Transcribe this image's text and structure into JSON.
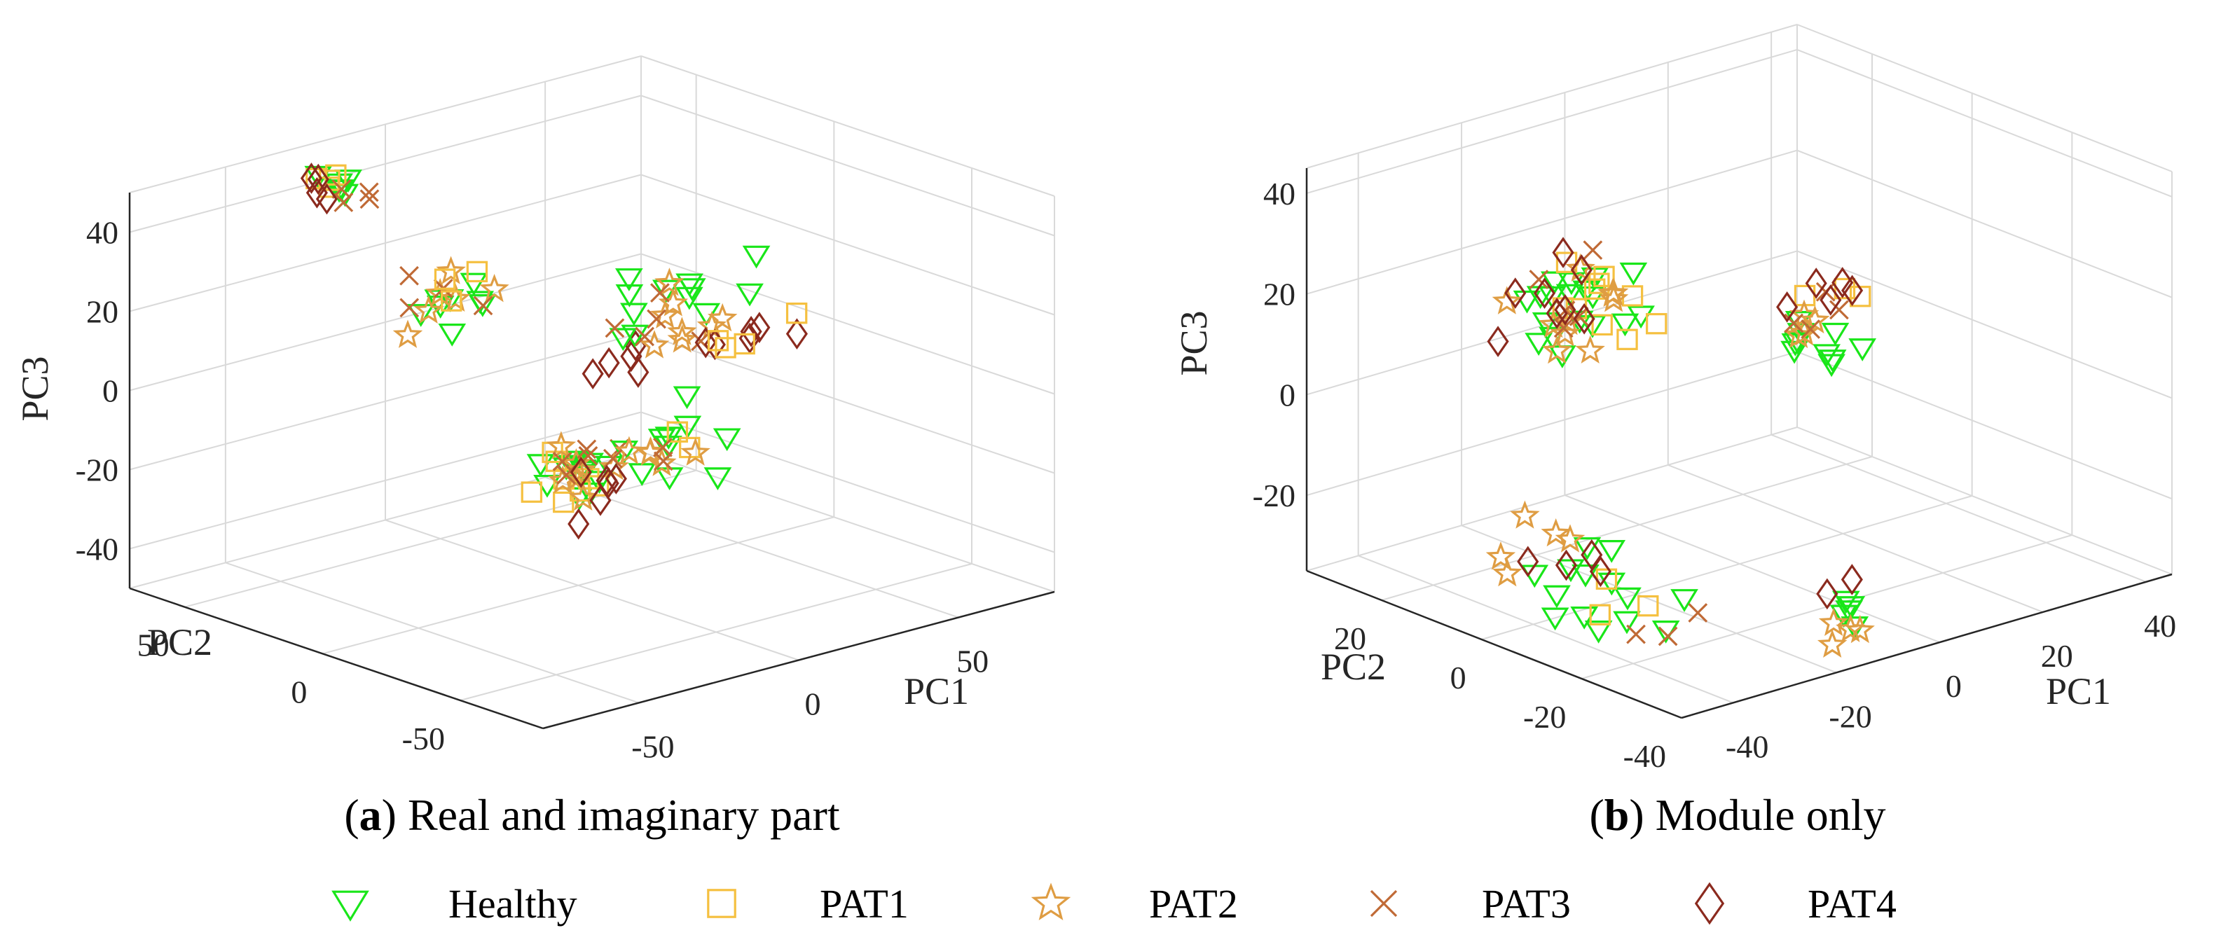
{
  "legend": [
    {
      "key": "healthy",
      "label": "Healthy",
      "marker": "triangle-down",
      "color": "#19e619"
    },
    {
      "key": "pat1",
      "label": "PAT1",
      "marker": "square",
      "color": "#f5c040"
    },
    {
      "key": "pat2",
      "label": "PAT2",
      "marker": "star",
      "color": "#df9d43"
    },
    {
      "key": "pat3",
      "label": "PAT3",
      "marker": "x",
      "color": "#c06a36"
    },
    {
      "key": "pat4",
      "label": "PAT4",
      "marker": "diamond",
      "color": "#8b2a1e"
    }
  ],
  "chart_data": [
    {
      "type": "scatter",
      "subtype": "3d-scatter",
      "caption_letter": "a",
      "caption_paren_open": "(",
      "caption_paren_close": ")",
      "caption_text": " Real and imaginary part",
      "xlabel": "PC1",
      "ylabel": "PC2",
      "zlabel": "PC3",
      "xlim": [
        -80,
        80
      ],
      "ylim": [
        -80,
        70
      ],
      "zlim": [
        -50,
        50
      ],
      "xticks": [
        {
          "value": -50,
          "label": "-50"
        },
        {
          "value": 0,
          "label": "0"
        },
        {
          "value": 50,
          "label": "50"
        }
      ],
      "yticks": [
        {
          "value": -50,
          "label": "-50"
        },
        {
          "value": 0,
          "label": "0"
        },
        {
          "value": 50,
          "label": "50"
        }
      ],
      "zticks": [
        {
          "value": -40,
          "label": "-40"
        },
        {
          "value": -20,
          "label": "-20"
        },
        {
          "value": 0,
          "label": "0"
        },
        {
          "value": 20,
          "label": "20"
        },
        {
          "value": 40,
          "label": "40"
        }
      ],
      "grid": true,
      "clusters": [
        {
          "series": "healthy",
          "center": [
            -25,
            60,
            42
          ],
          "spread": [
            6,
            6,
            4
          ],
          "count": 6
        },
        {
          "series": "pat1",
          "center": [
            -25,
            60,
            44
          ],
          "spread": [
            5,
            5,
            3
          ],
          "count": 4
        },
        {
          "series": "pat3",
          "center": [
            -22,
            58,
            40
          ],
          "spread": [
            6,
            5,
            4
          ],
          "count": 4
        },
        {
          "series": "pat4",
          "center": [
            -28,
            62,
            43
          ],
          "spread": [
            5,
            5,
            3
          ],
          "count": 4
        },
        {
          "series": "healthy",
          "center": [
            -5,
            40,
            10
          ],
          "spread": [
            12,
            10,
            8
          ],
          "count": 8
        },
        {
          "series": "pat2",
          "center": [
            -10,
            40,
            14
          ],
          "spread": [
            10,
            8,
            6
          ],
          "count": 6
        },
        {
          "series": "pat3",
          "center": [
            -8,
            38,
            14
          ],
          "spread": [
            10,
            8,
            6
          ],
          "count": 4
        },
        {
          "series": "pat1",
          "center": [
            -6,
            38,
            18
          ],
          "spread": [
            6,
            6,
            4
          ],
          "count": 3
        },
        {
          "series": "healthy",
          "center": [
            -20,
            -60,
            5
          ],
          "spread": [
            12,
            8,
            6
          ],
          "count": 10
        },
        {
          "series": "pat1",
          "center": [
            -20,
            -60,
            6
          ],
          "spread": [
            8,
            6,
            4
          ],
          "count": 2
        },
        {
          "series": "pat2",
          "center": [
            -24,
            -58,
            2
          ],
          "spread": [
            8,
            6,
            4
          ],
          "count": 4
        },
        {
          "series": "pat3",
          "center": [
            -22,
            -58,
            4
          ],
          "spread": [
            8,
            6,
            4
          ],
          "count": 3
        },
        {
          "series": "pat4",
          "center": [
            -5,
            -20,
            12
          ],
          "spread": [
            6,
            6,
            4
          ],
          "count": 5
        },
        {
          "series": "healthy",
          "center": [
            45,
            20,
            5
          ],
          "spread": [
            18,
            10,
            8
          ],
          "count": 12
        },
        {
          "series": "pat2",
          "center": [
            50,
            15,
            4
          ],
          "spread": [
            15,
            8,
            6
          ],
          "count": 8
        },
        {
          "series": "pat3",
          "center": [
            50,
            20,
            2
          ],
          "spread": [
            15,
            10,
            6
          ],
          "count": 5
        },
        {
          "series": "pat4",
          "center": [
            62,
            5,
            0
          ],
          "spread": [
            10,
            8,
            4
          ],
          "count": 6
        },
        {
          "series": "pat1",
          "center": [
            60,
            5,
            0
          ],
          "spread": [
            10,
            6,
            4
          ],
          "count": 4
        },
        {
          "series": "healthy",
          "center": [
            25,
            30,
            -35
          ],
          "spread": [
            10,
            8,
            6
          ],
          "count": 14
        },
        {
          "series": "pat1",
          "center": [
            25,
            30,
            -35
          ],
          "spread": [
            8,
            6,
            6
          ],
          "count": 8
        },
        {
          "series": "pat2",
          "center": [
            28,
            28,
            -33
          ],
          "spread": [
            8,
            6,
            6
          ],
          "count": 8
        },
        {
          "series": "pat3",
          "center": [
            28,
            28,
            -30
          ],
          "spread": [
            8,
            6,
            6
          ],
          "count": 5
        },
        {
          "series": "pat4",
          "center": [
            30,
            25,
            -38
          ],
          "spread": [
            8,
            6,
            6
          ],
          "count": 6
        }
      ]
    },
    {
      "type": "scatter",
      "subtype": "3d-scatter",
      "caption_letter": "b",
      "caption_paren_open": "(",
      "caption_paren_close": ")",
      "caption_text": " Module only",
      "xlabel": "PC1",
      "ylabel": "PC2",
      "zlabel": "PC3",
      "xlim": [
        -50,
        45
      ],
      "ylim": [
        -40,
        35
      ],
      "zlim": [
        -35,
        45
      ],
      "xticks": [
        {
          "value": -40,
          "label": "-40"
        },
        {
          "value": -20,
          "label": "-20"
        },
        {
          "value": 0,
          "label": "0"
        },
        {
          "value": 20,
          "label": "20"
        },
        {
          "value": 40,
          "label": "40"
        }
      ],
      "yticks": [
        {
          "value": -40,
          "label": "-40"
        },
        {
          "value": -20,
          "label": "-20"
        },
        {
          "value": 0,
          "label": "0"
        },
        {
          "value": 20,
          "label": "20"
        }
      ],
      "zticks": [
        {
          "value": -20,
          "label": "-20"
        },
        {
          "value": 0,
          "label": "0"
        },
        {
          "value": 20,
          "label": "20"
        },
        {
          "value": 40,
          "label": "40"
        }
      ],
      "grid": true,
      "clusters": [
        {
          "series": "healthy",
          "center": [
            -10,
            20,
            10
          ],
          "spread": [
            10,
            6,
            8
          ],
          "count": 18
        },
        {
          "series": "pat1",
          "center": [
            -10,
            20,
            12
          ],
          "spread": [
            10,
            6,
            6
          ],
          "count": 10
        },
        {
          "series": "pat2",
          "center": [
            -8,
            20,
            10
          ],
          "spread": [
            10,
            6,
            6
          ],
          "count": 10
        },
        {
          "series": "pat3",
          "center": [
            -12,
            20,
            14
          ],
          "spread": [
            8,
            6,
            8
          ],
          "count": 5
        },
        {
          "series": "pat4",
          "center": [
            -12,
            22,
            12
          ],
          "spread": [
            10,
            6,
            8
          ],
          "count": 8
        },
        {
          "series": "healthy",
          "center": [
            35,
            20,
            -10
          ],
          "spread": [
            6,
            5,
            4
          ],
          "count": 10
        },
        {
          "series": "pat1",
          "center": [
            38,
            20,
            -3
          ],
          "spread": [
            6,
            4,
            4
          ],
          "count": 3
        },
        {
          "series": "pat2",
          "center": [
            36,
            20,
            -6
          ],
          "spread": [
            5,
            4,
            3
          ],
          "count": 4
        },
        {
          "series": "pat3",
          "center": [
            38,
            22,
            -5
          ],
          "spread": [
            5,
            4,
            3
          ],
          "count": 4
        },
        {
          "series": "pat4",
          "center": [
            40,
            22,
            -2
          ],
          "spread": [
            5,
            4,
            4
          ],
          "count": 5
        },
        {
          "series": "healthy",
          "center": [
            -40,
            -18,
            -22
          ],
          "spread": [
            8,
            10,
            6
          ],
          "count": 14
        },
        {
          "series": "pat1",
          "center": [
            -40,
            -18,
            -22
          ],
          "spread": [
            6,
            8,
            4
          ],
          "count": 3
        },
        {
          "series": "pat2",
          "center": [
            -45,
            -10,
            -15
          ],
          "spread": [
            5,
            6,
            4
          ],
          "count": 5
        },
        {
          "series": "pat3",
          "center": [
            -38,
            -28,
            -25
          ],
          "spread": [
            5,
            5,
            3
          ],
          "count": 3
        },
        {
          "series": "pat4",
          "center": [
            -42,
            -15,
            -18
          ],
          "spread": [
            5,
            6,
            4
          ],
          "count": 4
        },
        {
          "series": "healthy",
          "center": [
            -15,
            -38,
            -25
          ],
          "spread": [
            4,
            3,
            3
          ],
          "count": 5
        },
        {
          "series": "pat2",
          "center": [
            -18,
            -38,
            -28
          ],
          "spread": [
            3,
            3,
            3
          ],
          "count": 4
        },
        {
          "series": "pat4",
          "center": [
            -14,
            -38,
            -22
          ],
          "spread": [
            3,
            3,
            2
          ],
          "count": 2
        }
      ]
    }
  ]
}
